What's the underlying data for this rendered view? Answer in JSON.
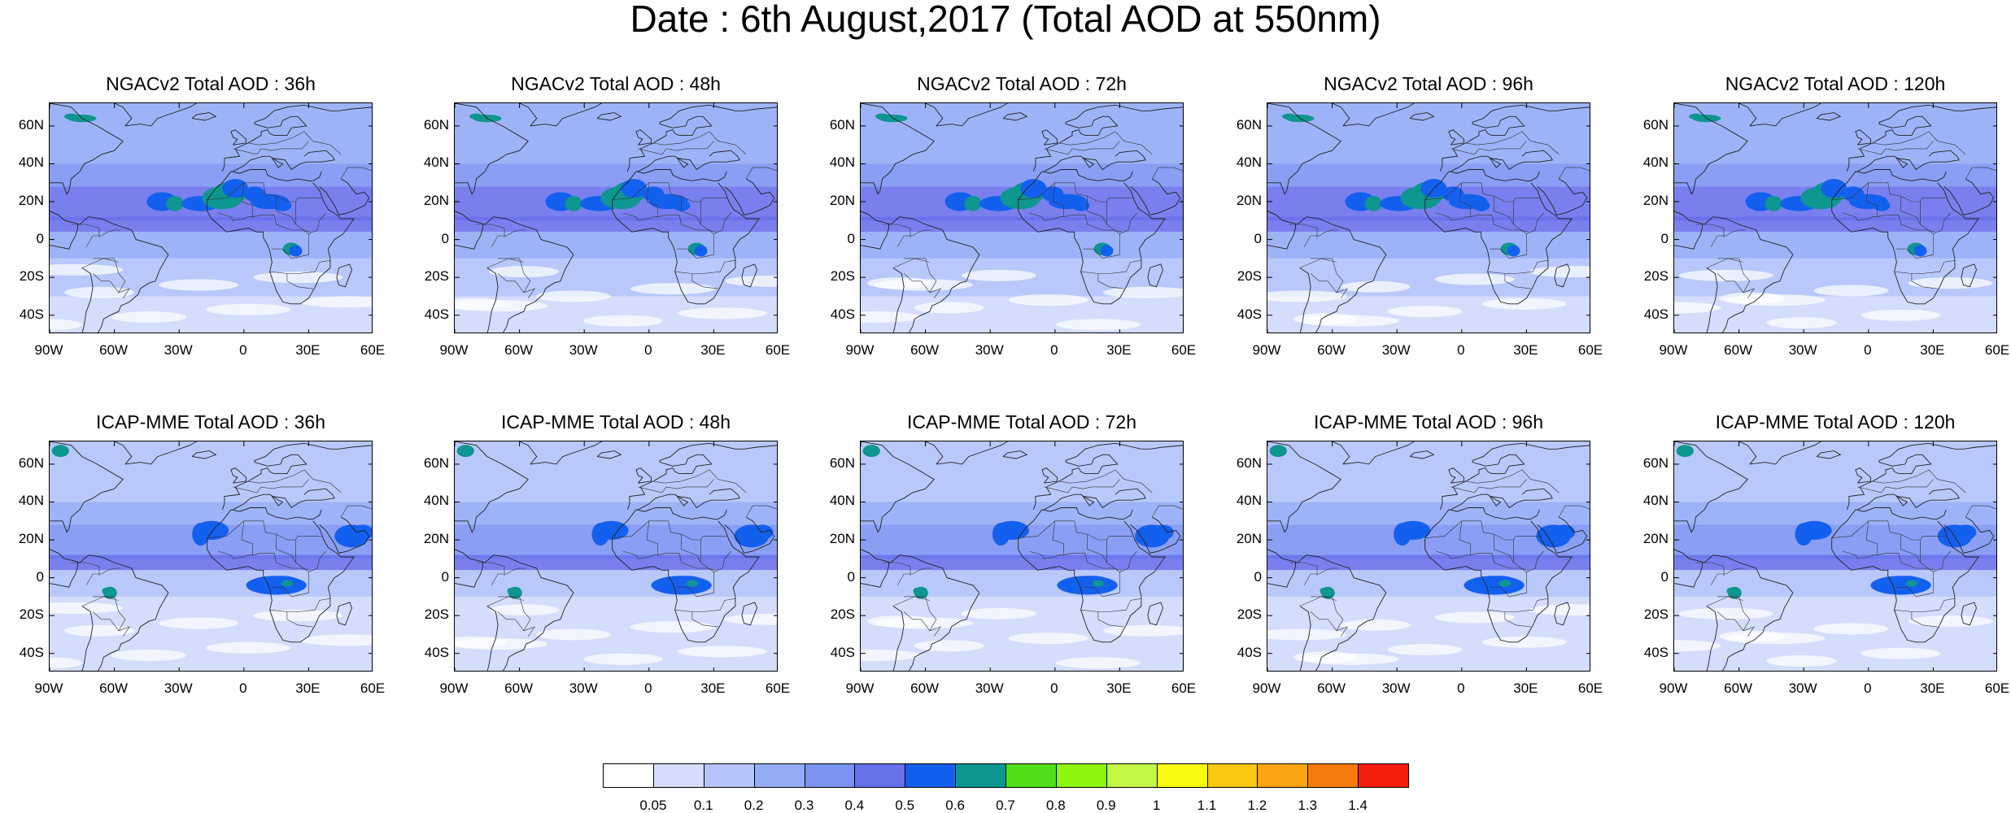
{
  "title": "Date : 6th August,2017 (Total AOD at 550nm)",
  "panels": [
    {
      "title": "NGACv2 Total AOD : 36h",
      "model": "ngac",
      "lead": 0
    },
    {
      "title": "NGACv2 Total AOD : 48h",
      "model": "ngac",
      "lead": 1
    },
    {
      "title": "NGACv2 Total AOD : 72h",
      "model": "ngac",
      "lead": 2
    },
    {
      "title": "NGACv2 Total AOD : 96h",
      "model": "ngac",
      "lead": 3
    },
    {
      "title": "NGACv2 Total AOD : 120h",
      "model": "ngac",
      "lead": 4
    },
    {
      "title": "ICAP-MME Total AOD : 36h",
      "model": "icap",
      "lead": 0
    },
    {
      "title": "ICAP-MME Total AOD : 48h",
      "model": "icap",
      "lead": 1
    },
    {
      "title": "ICAP-MME Total AOD : 72h",
      "model": "icap",
      "lead": 2
    },
    {
      "title": "ICAP-MME Total AOD : 96h",
      "model": "icap",
      "lead": 3
    },
    {
      "title": "ICAP-MME Total AOD : 120h",
      "model": "icap",
      "lead": 4
    }
  ],
  "lat_labels": [
    "60N",
    "40N",
    "20N",
    "0",
    "20S",
    "40S"
  ],
  "lon_labels": [
    "90W",
    "60W",
    "30W",
    "0",
    "30E",
    "60E"
  ],
  "colorbar": {
    "colors": [
      "#ffffff",
      "#d4ddfc",
      "#b4c4fa",
      "#94acf6",
      "#7c93f2",
      "#6870ea",
      "#1460ee",
      "#0e9690",
      "#4fdf16",
      "#8ef50e",
      "#c2f845",
      "#f8fa10",
      "#fac810",
      "#fca412",
      "#f67a0c",
      "#f41e0e"
    ],
    "labels": [
      "0.05",
      "0.1",
      "0.2",
      "0.3",
      "0.4",
      "0.5",
      "0.6",
      "0.7",
      "0.8",
      "0.9",
      "1",
      "1.1",
      "1.2",
      "1.3",
      "1.4"
    ]
  }
}
